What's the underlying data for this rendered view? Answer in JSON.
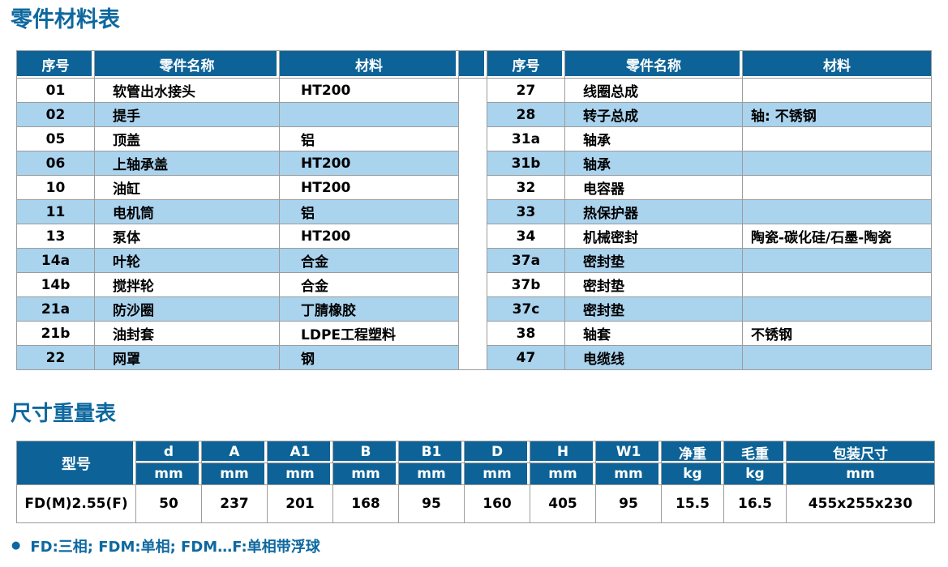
{
  "colors": {
    "header_bg": "#0d6397",
    "stripe_bg": "#aad3ee",
    "title_text": "#0e689f",
    "border": "#9c9c9c",
    "body_text": "#000000",
    "header_text": "#ffffff"
  },
  "parts_table": {
    "title": "零件材料表",
    "columns": [
      "序号",
      "零件名称",
      "材料"
    ],
    "left_rows": [
      {
        "no": "01",
        "name": "软管出水接头",
        "material": "HT200"
      },
      {
        "no": "02",
        "name": "提手",
        "material": ""
      },
      {
        "no": "05",
        "name": "顶盖",
        "material": "铝"
      },
      {
        "no": "06",
        "name": "上轴承盖",
        "material": "HT200"
      },
      {
        "no": "10",
        "name": "油缸",
        "material": "HT200"
      },
      {
        "no": "11",
        "name": "电机筒",
        "material": "铝"
      },
      {
        "no": "13",
        "name": "泵体",
        "material": "HT200"
      },
      {
        "no": "14a",
        "name": "叶轮",
        "material": "合金"
      },
      {
        "no": "14b",
        "name": "搅拌轮",
        "material": "合金"
      },
      {
        "no": "21a",
        "name": "防沙圈",
        "material": "丁腈橡胶"
      },
      {
        "no": "21b",
        "name": "油封套",
        "material": "LDPE工程塑料"
      },
      {
        "no": "22",
        "name": "网罩",
        "material": "钢"
      }
    ],
    "right_rows": [
      {
        "no": "27",
        "name": "线圈总成",
        "material": ""
      },
      {
        "no": "28",
        "name": "转子总成",
        "material": "轴: 不锈钢"
      },
      {
        "no": "31a",
        "name": "轴承",
        "material": ""
      },
      {
        "no": "31b",
        "name": "轴承",
        "material": ""
      },
      {
        "no": "32",
        "name": "电容器",
        "material": ""
      },
      {
        "no": "33",
        "name": "热保护器",
        "material": ""
      },
      {
        "no": "34",
        "name": "机械密封",
        "material": "陶瓷-碳化硅/石墨-陶瓷"
      },
      {
        "no": "37a",
        "name": "密封垫",
        "material": ""
      },
      {
        "no": "37b",
        "name": "密封垫",
        "material": ""
      },
      {
        "no": "37c",
        "name": "密封垫",
        "material": ""
      },
      {
        "no": "38",
        "name": "轴套",
        "material": "不锈钢"
      },
      {
        "no": "47",
        "name": "电缆线",
        "material": ""
      }
    ]
  },
  "dimensions_table": {
    "title": "尺寸重量表",
    "model_header": "型号",
    "columns": [
      {
        "label": "d",
        "unit": "mm"
      },
      {
        "label": "A",
        "unit": "mm"
      },
      {
        "label": "A1",
        "unit": "mm"
      },
      {
        "label": "B",
        "unit": "mm"
      },
      {
        "label": "B1",
        "unit": "mm"
      },
      {
        "label": "D",
        "unit": "mm"
      },
      {
        "label": "H",
        "unit": "mm"
      },
      {
        "label": "W1",
        "unit": "mm"
      },
      {
        "label": "净重",
        "unit": "kg"
      },
      {
        "label": "毛重",
        "unit": "kg"
      },
      {
        "label": "包装尺寸",
        "unit": "mm"
      }
    ],
    "row": {
      "model": "FD(M)2.55(F)",
      "values": [
        "50",
        "237",
        "201",
        "168",
        "95",
        "160",
        "405",
        "95",
        "15.5",
        "16.5",
        "455x255x230"
      ]
    }
  },
  "note": {
    "bullet": "●",
    "text": "FD:三相; FDM:单相; FDM…F:单相带浮球"
  }
}
